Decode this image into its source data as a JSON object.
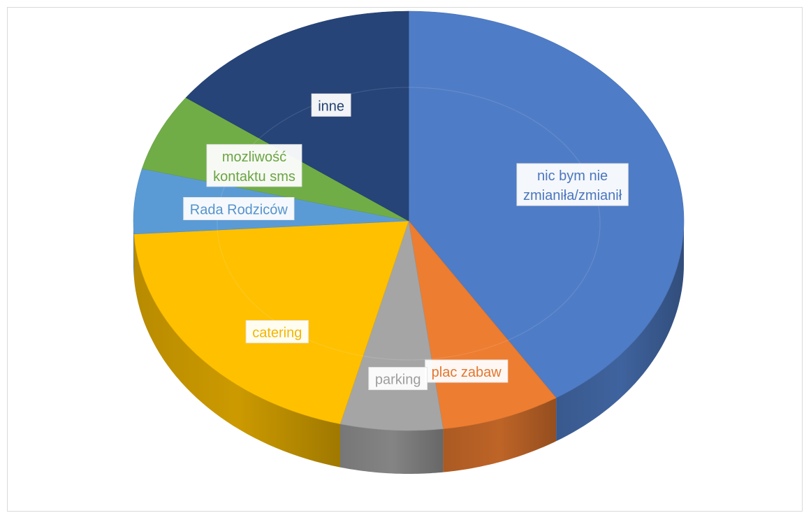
{
  "chart_data": {
    "type": "pie",
    "style": "3d",
    "title": "",
    "slices": [
      {
        "label": "nic bym nie zmianiła/zmianił",
        "value": 41,
        "color": "#4F7CC6",
        "label_lines": [
          "nic bym nie",
          "zmianiła/zmianił"
        ]
      },
      {
        "label": "plac zabaw",
        "value": 7,
        "color": "#ED7D31",
        "label_lines": [
          "plac zabaw"
        ]
      },
      {
        "label": "parking",
        "value": 6,
        "color": "#A5A5A5",
        "label_lines": [
          "parking"
        ]
      },
      {
        "label": "catering",
        "value": 20,
        "color": "#FFC000",
        "label_lines": [
          "catering"
        ]
      },
      {
        "label": "Rada Rodziców",
        "value": 5,
        "color": "#5B9BD5",
        "label_lines": [
          "Rada Rodziców"
        ]
      },
      {
        "label": "mozliwość kontaktu sms",
        "value": 6,
        "color": "#70AD47",
        "label_lines": [
          "mozliwość",
          "kontaktu sms"
        ]
      },
      {
        "label": "inne",
        "value": 15,
        "color": "#264478",
        "label_lines": [
          "inne"
        ]
      }
    ],
    "legend": "none",
    "data_labels": "category names"
  }
}
